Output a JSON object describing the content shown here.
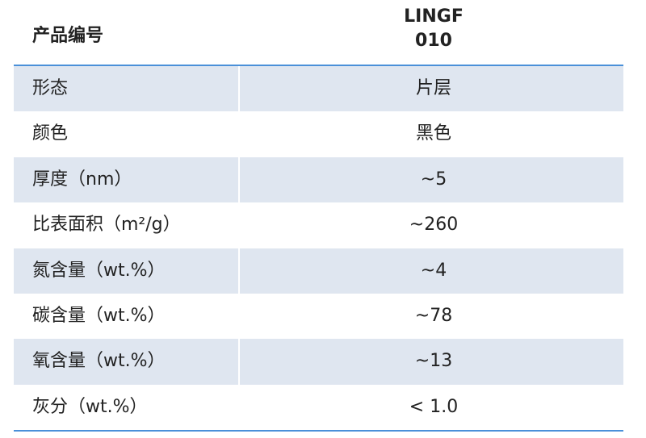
{
  "header": {
    "label": "产品编号",
    "product": [
      "LINGF",
      "010"
    ]
  },
  "table": {
    "rows": [
      [
        "形态",
        "片层"
      ],
      [
        "颜色",
        "黑色"
      ],
      [
        "厚度（nm）",
        "~5"
      ],
      [
        "比表面积（m²/g）",
        "~260"
      ],
      [
        "氮含量（wt.%）",
        "~4"
      ],
      [
        "碳含量（wt.%）",
        "~78"
      ],
      [
        "氧含量（wt.%）",
        "~13"
      ],
      [
        "灰分（wt.%）",
        "< 1.0"
      ]
    ]
  }
}
